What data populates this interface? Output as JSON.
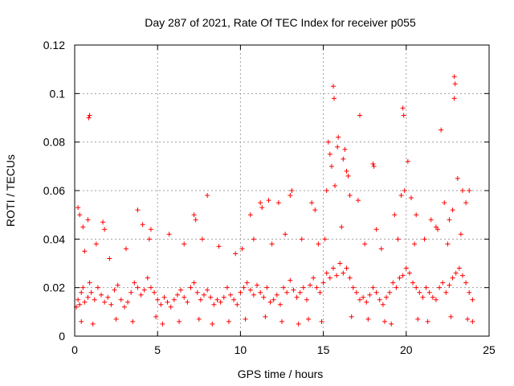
{
  "chart_data": {
    "type": "scatter",
    "title": "Day 287 of 2021, Rate Of TEC Index for receiver p055",
    "xlabel": "GPS time / hours",
    "ylabel": "ROTI / TECUs",
    "xlim": [
      0,
      25
    ],
    "ylim": [
      0,
      0.12
    ],
    "x_ticks": [
      0,
      5,
      10,
      15,
      20,
      25
    ],
    "x_tick_labels": [
      "0",
      "5",
      "10",
      "15",
      "20",
      "25"
    ],
    "y_ticks": [
      0,
      0.02,
      0.04,
      0.06,
      0.08,
      0.1,
      0.12
    ],
    "y_tick_labels": [
      "0",
      "0.02",
      "0.04",
      "0.06",
      "0.08",
      "0.1",
      "0.12"
    ],
    "grid": true,
    "marker": "plus",
    "marker_color": "#ff0000",
    "series": [
      {
        "x": [
          0.1,
          0.2,
          0.3,
          0.4,
          0.5,
          0.6,
          0.8,
          0.9,
          1.0,
          1.2,
          1.4,
          1.6,
          1.8,
          2.0,
          2.2,
          2.4,
          2.6,
          2.8,
          3.0,
          3.2,
          3.4,
          3.6,
          3.8,
          4.0,
          4.2,
          4.4,
          4.6,
          4.8,
          5.0,
          5.2,
          5.4,
          5.6,
          5.8,
          6.0,
          6.2,
          6.4,
          6.6,
          6.8,
          7.0,
          7.2,
          7.4,
          7.6,
          7.8,
          8.0,
          8.2,
          8.4,
          8.6,
          8.8,
          9.0,
          9.2,
          9.4,
          9.6,
          9.8,
          10.0,
          10.2,
          10.4,
          10.6,
          10.8,
          11.0,
          11.2,
          11.4,
          11.6,
          11.8,
          12.0,
          12.2,
          12.4,
          12.6,
          12.8,
          13.0,
          13.2,
          13.4,
          13.6,
          13.8,
          14.0,
          14.2,
          14.4,
          14.6,
          14.8,
          15.0,
          15.2,
          15.4,
          15.6,
          15.8,
          16.0,
          16.2,
          16.4,
          16.6,
          16.8,
          17.0,
          17.2,
          17.4,
          17.6,
          17.8,
          18.0,
          18.2,
          18.4,
          18.6,
          18.8,
          19.0,
          19.2,
          19.4,
          19.6,
          19.8,
          20.0,
          20.2,
          20.4,
          20.6,
          20.8,
          21.0,
          21.2,
          21.4,
          21.6,
          21.8,
          22.0,
          22.2,
          22.4,
          22.6,
          22.8,
          23.0,
          23.2,
          23.4,
          23.6,
          23.8,
          24.0,
          0.9,
          0.85,
          15.6,
          15.65,
          19.8,
          19.85,
          22.9,
          22.95,
          22.9,
          17.2,
          18.0,
          18.05,
          20.1,
          22.1,
          15.3,
          15.4,
          15.5,
          16.2,
          16.3,
          16.5,
          15.9,
          15.85,
          0.2,
          0.3,
          0.5,
          0.8,
          1.7,
          1.8,
          3.8,
          4.1,
          4.6,
          7.2,
          7.3,
          8.0,
          10.6,
          11.2,
          11.3,
          11.7,
          12.3,
          13.0,
          13.1,
          14.3,
          14.5,
          15.2,
          15.7,
          16.4,
          16.6,
          17.1,
          18.2,
          19.3,
          19.7,
          19.9,
          20.3,
          20.6,
          21.5,
          21.8,
          22.3,
          22.6,
          22.8,
          23.1,
          23.4,
          23.6,
          23.8,
          0.6,
          1.3,
          2.1,
          3.1,
          4.5,
          5.7,
          6.6,
          7.7,
          8.7,
          9.7,
          10.1,
          10.8,
          11.9,
          12.7,
          13.7,
          14.7,
          15.1,
          16.1,
          17.5,
          18.5,
          19.5,
          20.5,
          21.1,
          21.9,
          22.5,
          23.3,
          0.4,
          1.1,
          2.5,
          3.5,
          4.9,
          5.3,
          6.3,
          7.5,
          8.3,
          9.3,
          10.3,
          11.5,
          12.5,
          13.5,
          14.1,
          14.9,
          16.7,
          17.7,
          18.7,
          19.1,
          20.7,
          21.3,
          22.7,
          23.7,
          24.0
        ],
        "y": [
          0.012,
          0.015,
          0.013,
          0.018,
          0.02,
          0.014,
          0.016,
          0.022,
          0.018,
          0.015,
          0.02,
          0.017,
          0.014,
          0.016,
          0.013,
          0.019,
          0.021,
          0.015,
          0.012,
          0.014,
          0.018,
          0.022,
          0.02,
          0.017,
          0.019,
          0.024,
          0.02,
          0.018,
          0.015,
          0.013,
          0.016,
          0.014,
          0.012,
          0.015,
          0.017,
          0.019,
          0.016,
          0.014,
          0.02,
          0.022,
          0.018,
          0.015,
          0.017,
          0.019,
          0.016,
          0.013,
          0.015,
          0.014,
          0.016,
          0.02,
          0.017,
          0.015,
          0.013,
          0.018,
          0.02,
          0.022,
          0.019,
          0.017,
          0.021,
          0.018,
          0.016,
          0.02,
          0.014,
          0.015,
          0.017,
          0.013,
          0.02,
          0.018,
          0.023,
          0.019,
          0.016,
          0.018,
          0.02,
          0.015,
          0.021,
          0.024,
          0.02,
          0.018,
          0.022,
          0.026,
          0.024,
          0.028,
          0.025,
          0.03,
          0.026,
          0.028,
          0.024,
          0.02,
          0.018,
          0.015,
          0.016,
          0.014,
          0.017,
          0.02,
          0.018,
          0.015,
          0.013,
          0.016,
          0.018,
          0.022,
          0.02,
          0.024,
          0.025,
          0.028,
          0.026,
          0.022,
          0.02,
          0.018,
          0.016,
          0.02,
          0.018,
          0.016,
          0.015,
          0.02,
          0.022,
          0.018,
          0.021,
          0.024,
          0.026,
          0.028,
          0.025,
          0.022,
          0.018,
          0.015,
          0.091,
          0.09,
          0.103,
          0.098,
          0.094,
          0.091,
          0.107,
          0.104,
          0.098,
          0.091,
          0.071,
          0.07,
          0.072,
          0.085,
          0.08,
          0.075,
          0.07,
          0.073,
          0.077,
          0.066,
          0.082,
          0.078,
          0.053,
          0.05,
          0.045,
          0.048,
          0.047,
          0.044,
          0.052,
          0.046,
          0.044,
          0.05,
          0.048,
          0.058,
          0.05,
          0.055,
          0.053,
          0.056,
          0.055,
          0.058,
          0.06,
          0.055,
          0.052,
          0.06,
          0.062,
          0.068,
          0.058,
          0.056,
          0.044,
          0.05,
          0.058,
          0.06,
          0.057,
          0.05,
          0.048,
          0.045,
          0.055,
          0.048,
          0.052,
          0.065,
          0.06,
          0.055,
          0.06,
          0.035,
          0.038,
          0.032,
          0.036,
          0.04,
          0.042,
          0.038,
          0.04,
          0.037,
          0.034,
          0.036,
          0.04,
          0.038,
          0.042,
          0.04,
          0.038,
          0.04,
          0.045,
          0.038,
          0.036,
          0.04,
          0.038,
          0.04,
          0.044,
          0.038,
          0.042,
          0.006,
          0.005,
          0.007,
          0.006,
          0.008,
          0.005,
          0.006,
          0.007,
          0.005,
          0.006,
          0.007,
          0.008,
          0.006,
          0.005,
          0.007,
          0.006,
          0.008,
          0.007,
          0.006,
          0.005,
          0.007,
          0.006,
          0.008,
          0.007,
          0.006
        ]
      }
    ]
  }
}
